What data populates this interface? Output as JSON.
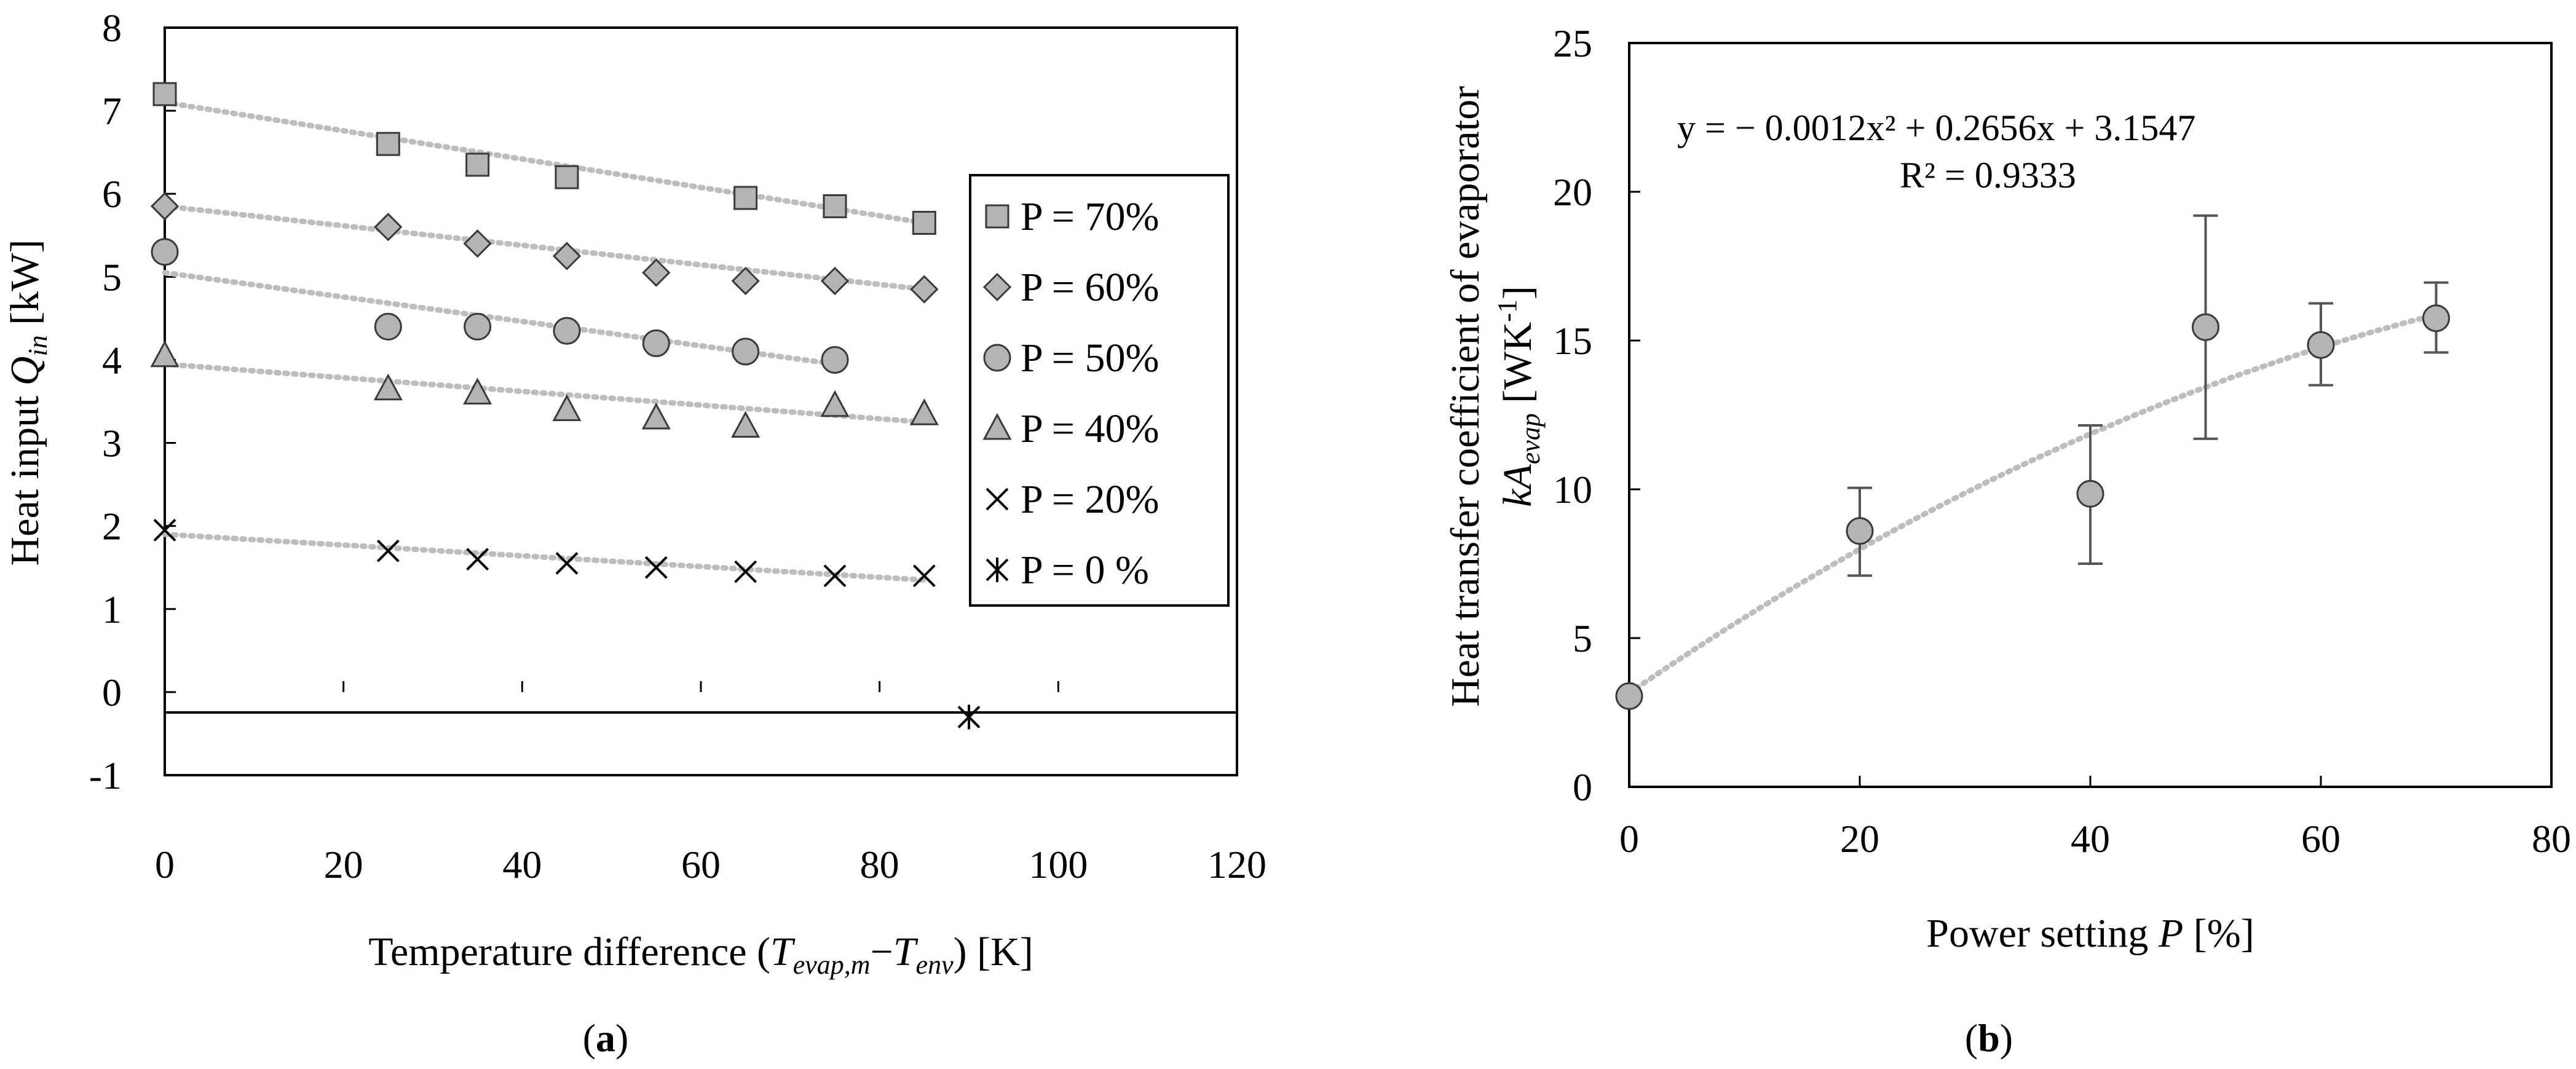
{
  "chart_data": [
    {
      "panel": "(a)",
      "type": "scatter",
      "xlabel": "Temperature difference (T_evap,m − T_env) [K]",
      "xlabel_parts": {
        "pre": "Temperature difference (",
        "t1": "T",
        "s1": "evap,m",
        "minus": "−",
        "t2": "T",
        "s2": "env",
        "post": ") [K]"
      },
      "ylabel": "Heat input Q_in [kW]",
      "ylabel_parts": {
        "pre": "Heat input ",
        "q": "Q",
        "sub": "in",
        "post": " [kW]"
      },
      "xlim": [
        0,
        120
      ],
      "ylim": [
        -1,
        8
      ],
      "xticks": [
        "0",
        "20",
        "40",
        "60",
        "80",
        "100",
        "120"
      ],
      "yticks": [
        "-1",
        "0",
        "1",
        "2",
        "3",
        "4",
        "5",
        "6",
        "7",
        "8"
      ],
      "grid": false,
      "legend_position": "right",
      "series": [
        {
          "name": "P = 70%",
          "marker": "square",
          "x": [
            0,
            25,
            35,
            45,
            65,
            75,
            85
          ],
          "y": [
            7.2,
            6.6,
            6.35,
            6.2,
            5.95,
            5.85,
            5.65
          ]
        },
        {
          "name": "P = 60%",
          "marker": "diamond",
          "x": [
            0,
            25,
            35,
            45,
            55,
            65,
            75,
            85
          ],
          "y": [
            5.85,
            5.6,
            5.4,
            5.25,
            5.05,
            4.95,
            4.95,
            4.85
          ]
        },
        {
          "name": "P = 50%",
          "marker": "circle",
          "x": [
            0,
            25,
            35,
            45,
            55,
            65,
            75
          ],
          "y": [
            5.3,
            4.4,
            4.4,
            4.35,
            4.2,
            4.1,
            4.0
          ]
        },
        {
          "name": "P = 40%",
          "marker": "triangle",
          "x": [
            0,
            25,
            35,
            45,
            55,
            65,
            75,
            85
          ],
          "y": [
            4.05,
            3.65,
            3.6,
            3.4,
            3.3,
            3.2,
            3.45,
            3.35
          ]
        },
        {
          "name": "P = 20%",
          "marker": "x",
          "x": [
            0,
            25,
            35,
            45,
            55,
            65,
            75,
            85
          ],
          "y": [
            1.95,
            1.7,
            1.6,
            1.55,
            1.5,
            1.45,
            1.4,
            1.4
          ]
        },
        {
          "name": "P = 0 %",
          "marker": "asterisk",
          "x": [
            90
          ],
          "y": [
            -0.3
          ]
        }
      ],
      "trendlines": [
        {
          "series": "P = 70%",
          "x": [
            0,
            85
          ],
          "y": [
            7.1,
            5.65
          ]
        },
        {
          "series": "P = 60%",
          "x": [
            0,
            85
          ],
          "y": [
            5.85,
            4.85
          ]
        },
        {
          "series": "P = 50%",
          "x": [
            0,
            75
          ],
          "y": [
            5.05,
            3.95
          ]
        },
        {
          "series": "P = 40%",
          "x": [
            0,
            85
          ],
          "y": [
            3.95,
            3.25
          ]
        },
        {
          "series": "P = 20%",
          "x": [
            0,
            85
          ],
          "y": [
            1.9,
            1.35
          ]
        }
      ]
    },
    {
      "panel": "(b)",
      "type": "scatter",
      "xlabel": "Power setting P [%]",
      "xlabel_parts": {
        "pre": "Power setting ",
        "p": "P",
        "post": " [%]"
      },
      "ylabel": "Heat transfer coefficient of evaporator kA_evap [WK-1]",
      "ylabel_parts": {
        "line1": "Heat transfer coefficient of evaporator",
        "k": "kA",
        "sub": "evap",
        "mid": " [WK",
        "sup": "-1",
        "post": "]"
      },
      "xlim": [
        0,
        80
      ],
      "ylim": [
        0,
        25
      ],
      "xticks": [
        "0",
        "20",
        "40",
        "60",
        "80"
      ],
      "yticks": [
        "0",
        "5",
        "10",
        "15",
        "20",
        "25"
      ],
      "grid": false,
      "equation": {
        "line1": "y = − 0.0012x² + 0.2656x + 3.1547",
        "line2": "R² = 0.9333"
      },
      "series": [
        {
          "name": "",
          "marker": "circle",
          "x": [
            0,
            20,
            40,
            50,
            60,
            70
          ],
          "y": [
            3.05,
            8.6,
            9.85,
            15.45,
            14.85,
            15.75
          ],
          "error_low": [
            3.05,
            7.1,
            7.5,
            11.7,
            13.5,
            14.6
          ],
          "error_high": [
            3.05,
            10.05,
            12.15,
            19.2,
            16.25,
            16.95
          ]
        }
      ],
      "trendline": {
        "type": "polynomial",
        "coefficients": [
          -0.0012,
          0.2656,
          3.1547
        ],
        "x_range": [
          0,
          70
        ]
      }
    }
  ],
  "panel_labels": {
    "a": "a",
    "b": "b"
  }
}
